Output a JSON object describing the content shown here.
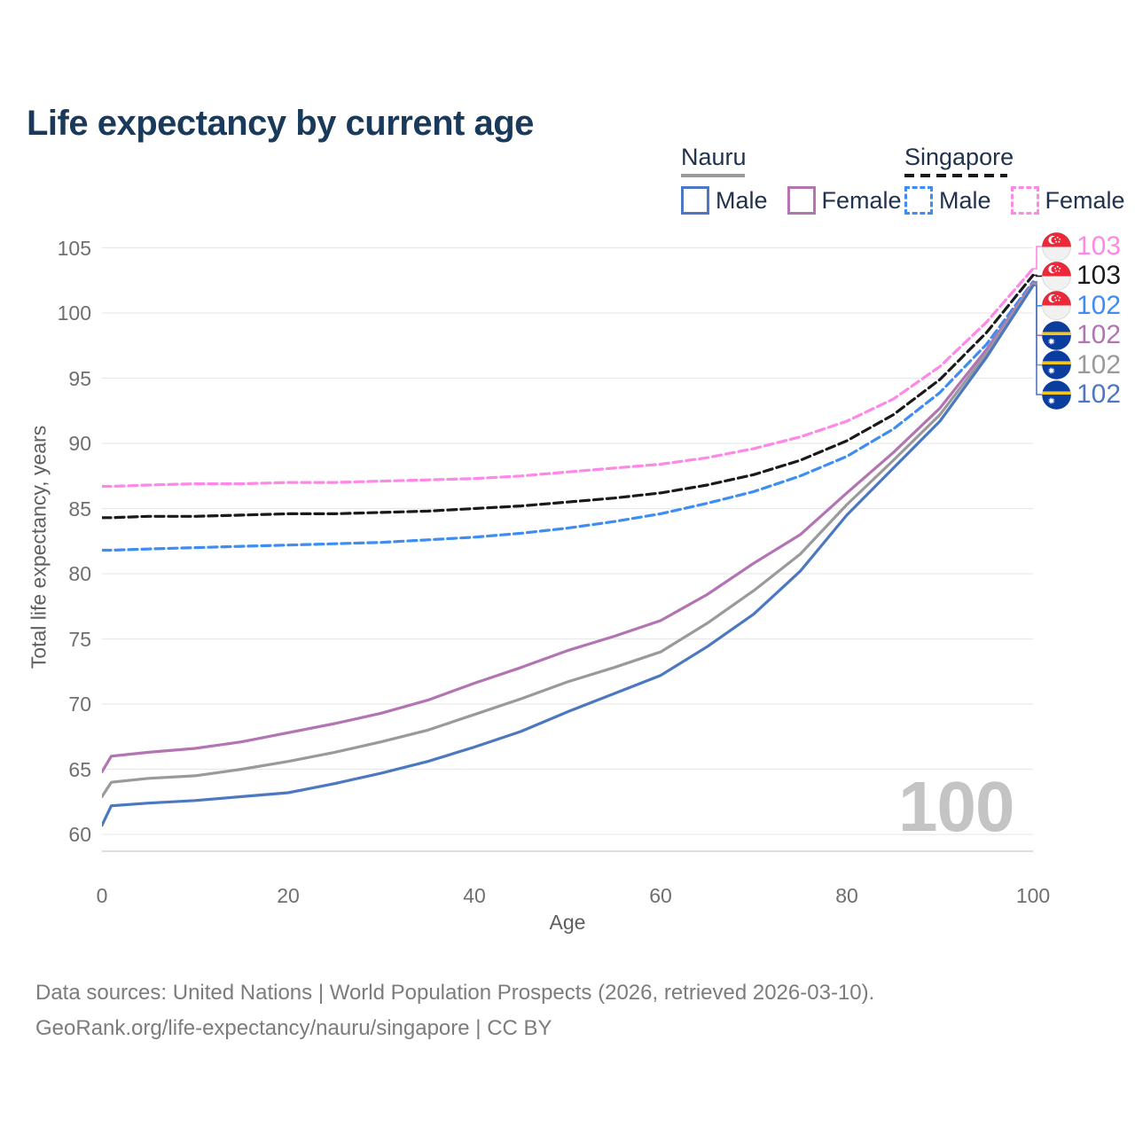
{
  "title": "Life expectancy by current age",
  "legend": {
    "groups": [
      {
        "country": "Nauru",
        "line_style": "solid",
        "underline_color": "#9a9a9a",
        "items": [
          {
            "label": "Male",
            "color": "#4c78c2",
            "style": "solid"
          },
          {
            "label": "Female",
            "color": "#b274b2",
            "style": "solid"
          }
        ]
      },
      {
        "country": "Singapore",
        "line_style": "dashed",
        "underline_color": "#1a1a1a",
        "items": [
          {
            "label": "Male",
            "color": "#3e8df5",
            "style": "dashed"
          },
          {
            "label": "Female",
            "color": "#ff87e8",
            "style": "dashed"
          }
        ]
      }
    ]
  },
  "chart_data": {
    "type": "line",
    "title": "Life expectancy by current age",
    "xlabel": "Age",
    "ylabel": "Total life expectancy, years",
    "xlim": [
      0,
      100
    ],
    "ylim": [
      58.5,
      106
    ],
    "xticks": [
      0,
      20,
      40,
      60,
      80,
      100
    ],
    "yticks": [
      60,
      65,
      70,
      75,
      80,
      85,
      90,
      95,
      100,
      105
    ],
    "grid": true,
    "legend_position": "top-right",
    "watermark": "100",
    "x": [
      0,
      1,
      5,
      10,
      15,
      20,
      25,
      30,
      35,
      40,
      45,
      50,
      55,
      60,
      65,
      70,
      75,
      80,
      85,
      90,
      95,
      100
    ],
    "series": [
      {
        "name": "Singapore Female",
        "country": "Singapore",
        "sex": "Female",
        "style": "dashed",
        "color": "#ff87e8",
        "flag": "singapore-flag",
        "end_label": "103",
        "values": [
          86.7,
          86.7,
          86.8,
          86.9,
          86.9,
          87.0,
          87.0,
          87.1,
          87.2,
          87.3,
          87.5,
          87.8,
          88.1,
          88.4,
          88.9,
          89.6,
          90.5,
          91.7,
          93.4,
          95.9,
          99.3,
          103.4
        ]
      },
      {
        "name": "Singapore Both sexes",
        "country": "Singapore",
        "sex": "Both",
        "style": "dashed",
        "color": "#1a1a1a",
        "flag": "singapore-flag",
        "end_label": "103",
        "values": [
          84.3,
          84.3,
          84.4,
          84.4,
          84.5,
          84.6,
          84.6,
          84.7,
          84.8,
          85.0,
          85.2,
          85.5,
          85.8,
          86.2,
          86.8,
          87.6,
          88.7,
          90.2,
          92.2,
          94.9,
          98.5,
          102.9
        ]
      },
      {
        "name": "Singapore Male",
        "country": "Singapore",
        "sex": "Male",
        "style": "dashed",
        "color": "#3e8df5",
        "flag": "singapore-flag",
        "end_label": "102",
        "values": [
          81.8,
          81.8,
          81.9,
          82.0,
          82.1,
          82.2,
          82.3,
          82.4,
          82.6,
          82.8,
          83.1,
          83.5,
          84.0,
          84.6,
          85.4,
          86.3,
          87.5,
          89.0,
          91.1,
          93.9,
          97.6,
          102.4
        ]
      },
      {
        "name": "Nauru Female",
        "country": "Nauru",
        "sex": "Female",
        "style": "solid",
        "color": "#b274b2",
        "flag": "nauru-flag",
        "end_label": "102",
        "values": [
          64.8,
          66.0,
          66.3,
          66.6,
          67.1,
          67.8,
          68.5,
          69.3,
          70.3,
          71.6,
          72.8,
          74.1,
          75.2,
          76.4,
          78.4,
          80.8,
          83.0,
          86.2,
          89.3,
          92.7,
          97.2,
          102.3
        ]
      },
      {
        "name": "Nauru Both sexes",
        "country": "Nauru",
        "sex": "Both",
        "style": "solid",
        "color": "#9a9a9a",
        "flag": "nauru-flag",
        "end_label": "102",
        "values": [
          62.9,
          64.0,
          64.3,
          64.5,
          65.0,
          65.6,
          66.3,
          67.1,
          68.0,
          69.2,
          70.4,
          71.7,
          72.8,
          74.0,
          76.2,
          78.7,
          81.5,
          85.3,
          88.7,
          92.2,
          96.9,
          102.2
        ]
      },
      {
        "name": "Nauru Male",
        "country": "Nauru",
        "sex": "Male",
        "style": "solid",
        "color": "#4c78c2",
        "flag": "nauru-flag",
        "end_label": "102",
        "values": [
          60.7,
          62.2,
          62.4,
          62.6,
          62.9,
          63.2,
          63.9,
          64.7,
          65.6,
          66.7,
          67.9,
          69.4,
          70.8,
          72.2,
          74.4,
          76.9,
          80.2,
          84.5,
          88.1,
          91.7,
          96.6,
          102.1
        ]
      }
    ]
  },
  "flag_colors": {
    "singapore_red": "#ed2939",
    "singapore_white": "#f1f1f1",
    "nauru_blue": "#0a3d9e",
    "nauru_yellow": "#f5c51d"
  },
  "footer": {
    "line1": "Data sources: United Nations | World Population Prospects (2026, retrieved 2026-03-10).",
    "line2": "GeoRank.org/life-expectancy/nauru/singapore | CC BY"
  }
}
